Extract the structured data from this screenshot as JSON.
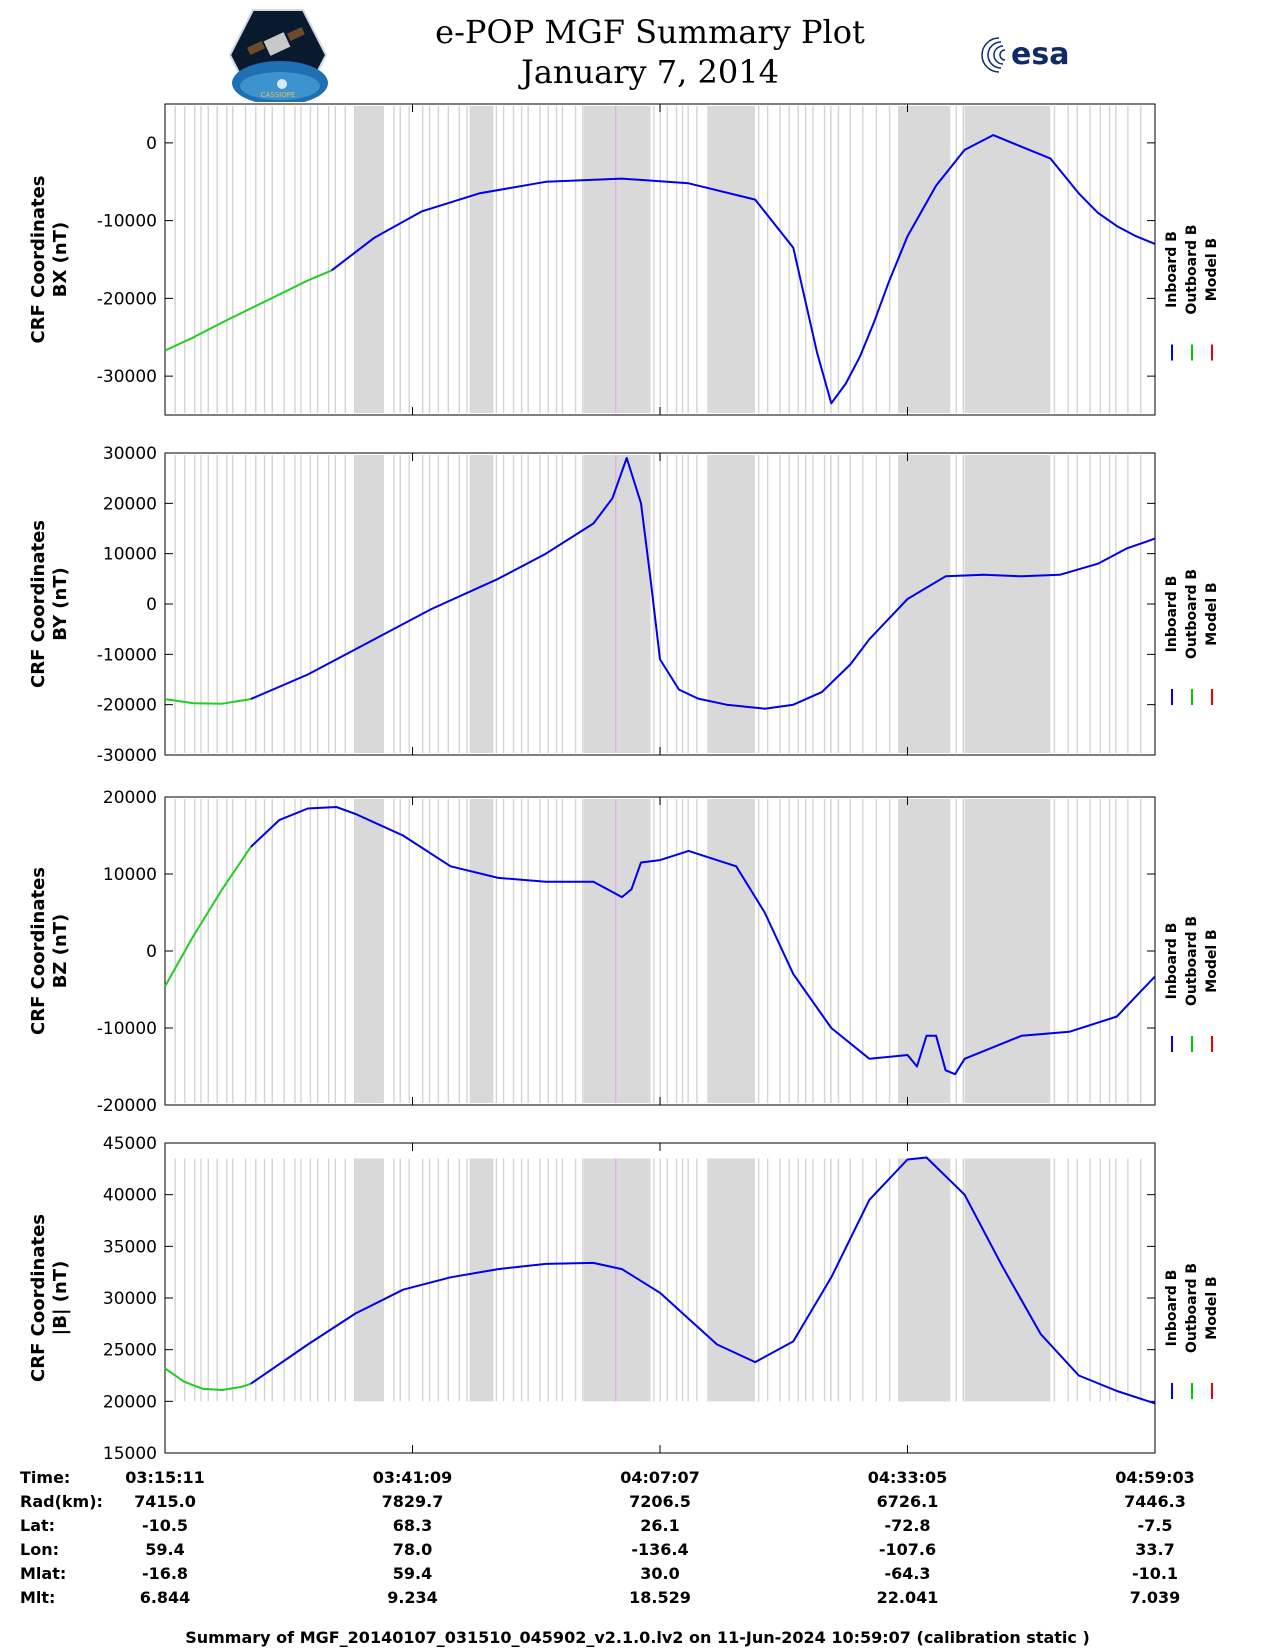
{
  "header": {
    "title_line1": "e-POP MGF Summary Plot",
    "title_line2": "January 7, 2014",
    "left_logo_text": "CASSIOPE",
    "right_logo_text": "esa"
  },
  "legend": {
    "entries": [
      {
        "name": "Inboard B",
        "color": "#0000ee"
      },
      {
        "name": "Outboard B",
        "color": "#00cc00"
      },
      {
        "name": "Model B",
        "color": "#ee0000"
      }
    ]
  },
  "chart_data": [
    {
      "type": "line",
      "ylabel_line1": "CRF Coordinates",
      "ylabel_line2": "BX (nT)",
      "ylim": [
        -35000,
        5000
      ],
      "yticks": [
        0,
        -10000,
        -20000,
        -30000
      ],
      "ytick_labels": [
        "0",
        "-10000",
        "-20000",
        "-30000"
      ],
      "x_range_minutes": [
        0,
        104
      ],
      "series": [
        {
          "name": "Outboard B",
          "color": "#22cc22",
          "x": [
            0,
            3,
            6,
            9,
            12,
            15,
            17.5
          ],
          "y": [
            -26700,
            -25000,
            -23100,
            -21300,
            -19500,
            -17700,
            -16400
          ]
        },
        {
          "name": "Inboard B",
          "color": "#0000ee",
          "x": [
            17.5,
            22,
            27,
            33,
            40,
            48,
            55,
            62,
            66,
            68.5,
            70,
            71.5,
            73,
            74.5,
            76,
            78,
            81,
            84,
            87,
            90,
            93,
            96,
            98,
            100,
            102,
            104
          ],
          "y": [
            -16400,
            -12200,
            -8800,
            -6500,
            -5000,
            -4600,
            -5200,
            -7300,
            -13500,
            -27000,
            -33500,
            -31000,
            -27500,
            -23000,
            -18000,
            -12000,
            -5500,
            -900,
            1000,
            -500,
            -2000,
            -6500,
            -9000,
            -10700,
            -12000,
            -13000
          ]
        }
      ]
    },
    {
      "type": "line",
      "ylabel_line1": "CRF Coordinates",
      "ylabel_line2": "BY (nT)",
      "ylim": [
        -30000,
        30000
      ],
      "yticks": [
        30000,
        20000,
        10000,
        0,
        -10000,
        -20000,
        -30000
      ],
      "ytick_labels": [
        "30000",
        "20000",
        "10000",
        "0",
        "-10000",
        "-20000",
        "-30000"
      ],
      "x_range_minutes": [
        0,
        104
      ],
      "series": [
        {
          "name": "Outboard B",
          "color": "#22cc22",
          "x": [
            0,
            3,
            6,
            9
          ],
          "y": [
            -18900,
            -19700,
            -19800,
            -18900
          ]
        },
        {
          "name": "Inboard B",
          "color": "#0000ee",
          "x": [
            9,
            15,
            22,
            28,
            35,
            40,
            45,
            47,
            48.5,
            50,
            51,
            52,
            54,
            56,
            59,
            63,
            66,
            69,
            72,
            74,
            78,
            82,
            86,
            90,
            94,
            98,
            101,
            104
          ],
          "y": [
            -18900,
            -14000,
            -7000,
            -1000,
            5000,
            10000,
            16000,
            21000,
            29000,
            20000,
            5000,
            -11000,
            -17000,
            -18800,
            -20000,
            -20800,
            -20000,
            -17500,
            -12000,
            -7000,
            1000,
            5500,
            5800,
            5500,
            5800,
            8000,
            11000,
            13000
          ]
        }
      ]
    },
    {
      "type": "line",
      "ylabel_line1": "CRF Coordinates",
      "ylabel_line2": "BZ (nT)",
      "ylim": [
        -20000,
        20000
      ],
      "yticks": [
        20000,
        10000,
        0,
        -10000,
        -20000
      ],
      "ytick_labels": [
        "20000",
        "10000",
        "0",
        "-10000",
        "-20000"
      ],
      "x_range_minutes": [
        0,
        104
      ],
      "series": [
        {
          "name": "Outboard B",
          "color": "#22cc22",
          "x": [
            0,
            3,
            6,
            9
          ],
          "y": [
            -4600,
            2000,
            8000,
            13500
          ]
        },
        {
          "name": "Inboard B",
          "color": "#0000ee",
          "x": [
            9,
            12,
            15,
            18,
            20,
            25,
            30,
            35,
            40,
            45,
            48,
            49,
            50,
            52,
            55,
            60,
            63,
            66,
            70,
            74,
            78,
            79,
            80,
            81,
            82,
            83,
            84,
            86,
            90,
            95,
            100,
            104
          ],
          "y": [
            13500,
            17000,
            18500,
            18700,
            17800,
            15000,
            11000,
            9500,
            9000,
            9000,
            7000,
            8000,
            11500,
            11800,
            13000,
            11000,
            5000,
            -3000,
            -10000,
            -14000,
            -13500,
            -15000,
            -11000,
            -11000,
            -15500,
            -16000,
            -14000,
            -13000,
            -11000,
            -10500,
            -8500,
            -3300
          ]
        }
      ]
    },
    {
      "type": "line",
      "ylabel_line1": "CRF Coordinates",
      "ylabel_line2": "|B| (nT)",
      "ylim": [
        15000,
        45000
      ],
      "yticks": [
        45000,
        40000,
        35000,
        30000,
        25000,
        20000,
        15000
      ],
      "ytick_labels": [
        "45000",
        "40000",
        "35000",
        "30000",
        "25000",
        "20000",
        "15000"
      ],
      "x_range_minutes": [
        0,
        104
      ],
      "series": [
        {
          "name": "Outboard B",
          "color": "#22cc22",
          "x": [
            0,
            2,
            4,
            6,
            8,
            9
          ],
          "y": [
            23200,
            21900,
            21200,
            21100,
            21400,
            21700
          ]
        },
        {
          "name": "Inboard B",
          "color": "#0000ee",
          "x": [
            9,
            15,
            20,
            25,
            30,
            35,
            40,
            45,
            48,
            52,
            55,
            58,
            62,
            66,
            70,
            74,
            78,
            80,
            84,
            88,
            92,
            96,
            100,
            104
          ],
          "y": [
            21700,
            25500,
            28500,
            30800,
            32000,
            32800,
            33300,
            33400,
            32800,
            30500,
            28000,
            25500,
            23800,
            25800,
            32000,
            39500,
            43400,
            43600,
            40000,
            33000,
            26500,
            22500,
            21000,
            19800
          ]
        }
      ]
    }
  ],
  "axis_table": {
    "labels": [
      "Time:",
      "Rad(km):",
      "Lat:",
      "Lon:",
      "Mlat:",
      "Mlt:"
    ],
    "columns": [
      {
        "time": "03:15:11",
        "rad": "7415.0",
        "lat": "-10.5",
        "lon": "59.4",
        "mlat": "-16.8",
        "mlt": "6.844"
      },
      {
        "time": "03:41:09",
        "rad": "7829.7",
        "lat": "68.3",
        "lon": "78.0",
        "mlat": "59.4",
        "mlt": "9.234"
      },
      {
        "time": "04:07:07",
        "rad": "7206.5",
        "lat": "26.1",
        "lon": "-136.4",
        "mlat": "30.0",
        "mlt": "18.529"
      },
      {
        "time": "04:33:05",
        "rad": "6726.1",
        "lat": "-72.8",
        "lon": "-107.6",
        "mlat": "-64.3",
        "mlt": "22.041"
      },
      {
        "time": "04:59:03",
        "rad": "7446.3",
        "lat": "-7.5",
        "lon": "33.7",
        "mlat": "-10.1",
        "mlt": "7.039"
      }
    ]
  },
  "footer": {
    "caption": "Summary of MGF_20140107_031510_045902_v2.1.0.lv2 on 11-Jun-2024 10:59:07 (calibration static )"
  }
}
